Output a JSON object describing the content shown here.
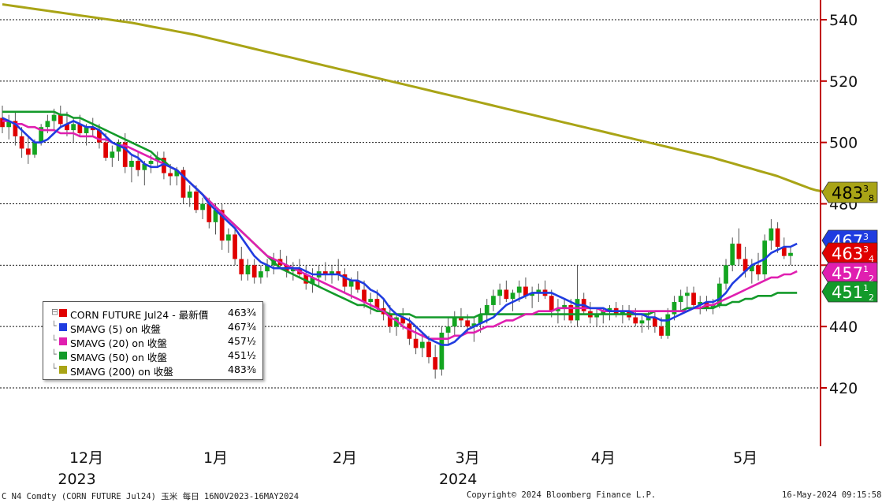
{
  "chart_data": {
    "type": "candlestick",
    "instrument": "CORN FUTURE Jul24",
    "y_axis": {
      "ticks": [
        420,
        440,
        460,
        480,
        500,
        520,
        540
      ],
      "ylim": [
        407,
        547
      ],
      "position": "right"
    },
    "x_axis": {
      "months": [
        {
          "label": "12月",
          "x_date": "2023-12-01"
        },
        {
          "label": "1月",
          "x_date": "2024-01-02"
        },
        {
          "label": "2月",
          "x_date": "2024-02-01"
        },
        {
          "label": "3月",
          "x_date": "2024-03-01"
        },
        {
          "label": "4月",
          "x_date": "2024-04-01"
        },
        {
          "label": "5月",
          "x_date": "2024-05-01"
        }
      ],
      "years": [
        {
          "label": "2023",
          "under": "12月"
        },
        {
          "label": "2024",
          "under": "3月"
        }
      ]
    },
    "candles_ohlc": [
      [
        508,
        512,
        503,
        505
      ],
      [
        505,
        509,
        501,
        507
      ],
      [
        507,
        510,
        499,
        502
      ],
      [
        502,
        505,
        495,
        498
      ],
      [
        498,
        502,
        493,
        496
      ],
      [
        496,
        501,
        495,
        500
      ],
      [
        500,
        506,
        499,
        505
      ],
      [
        505,
        509,
        503,
        507
      ],
      [
        507,
        511,
        504,
        509
      ],
      [
        509,
        512,
        505,
        506
      ],
      [
        506,
        510,
        502,
        504
      ],
      [
        504,
        508,
        500,
        506
      ],
      [
        506,
        509,
        502,
        503
      ],
      [
        503,
        506,
        499,
        505
      ],
      [
        505,
        508,
        502,
        504
      ],
      [
        504,
        506,
        498,
        500
      ],
      [
        500,
        503,
        494,
        495
      ],
      [
        495,
        499,
        492,
        497
      ],
      [
        497,
        501,
        494,
        500
      ],
      [
        500,
        503,
        490,
        492
      ],
      [
        492,
        496,
        487,
        494
      ],
      [
        494,
        497,
        489,
        491
      ],
      [
        491,
        494,
        486,
        493
      ],
      [
        493,
        496,
        490,
        494
      ],
      [
        494,
        497,
        492,
        495
      ],
      [
        495,
        497,
        488,
        490
      ],
      [
        490,
        493,
        486,
        489
      ],
      [
        489,
        492,
        486,
        491
      ],
      [
        491,
        492,
        480,
        482
      ],
      [
        482,
        486,
        479,
        484
      ],
      [
        484,
        486,
        477,
        478
      ],
      [
        478,
        482,
        475,
        480
      ],
      [
        480,
        482,
        472,
        474
      ],
      [
        474,
        480,
        470,
        478
      ],
      [
        478,
        480,
        465,
        468
      ],
      [
        468,
        472,
        464,
        470
      ],
      [
        470,
        472,
        460,
        462
      ],
      [
        462,
        466,
        455,
        457
      ],
      [
        457,
        462,
        455,
        460
      ],
      [
        460,
        462,
        454,
        456
      ],
      [
        456,
        460,
        454,
        458
      ],
      [
        458,
        462,
        456,
        460
      ],
      [
        460,
        464,
        457,
        462
      ],
      [
        462,
        465,
        459,
        460
      ],
      [
        460,
        463,
        456,
        458
      ],
      [
        458,
        461,
        455,
        459
      ],
      [
        459,
        462,
        456,
        457
      ],
      [
        457,
        460,
        452,
        454
      ],
      [
        454,
        459,
        451,
        456
      ],
      [
        456,
        460,
        453,
        458
      ],
      [
        458,
        461,
        455,
        457
      ],
      [
        457,
        460,
        454,
        458
      ],
      [
        458,
        462,
        455,
        457
      ],
      [
        457,
        459,
        451,
        453
      ],
      [
        453,
        456,
        449,
        455
      ],
      [
        455,
        458,
        451,
        452
      ],
      [
        452,
        455,
        446,
        448
      ],
      [
        448,
        451,
        444,
        449
      ],
      [
        449,
        452,
        445,
        446
      ],
      [
        446,
        449,
        442,
        444
      ],
      [
        444,
        447,
        438,
        440
      ],
      [
        440,
        444,
        437,
        443
      ],
      [
        443,
        446,
        439,
        441
      ],
      [
        441,
        443,
        434,
        436
      ],
      [
        436,
        440,
        431,
        433
      ],
      [
        433,
        438,
        430,
        435
      ],
      [
        435,
        437,
        428,
        430
      ],
      [
        430,
        434,
        423,
        426
      ],
      [
        426,
        440,
        424,
        438
      ],
      [
        438,
        443,
        434,
        440
      ],
      [
        440,
        445,
        437,
        443
      ],
      [
        443,
        446,
        440,
        442
      ],
      [
        442,
        444,
        438,
        440
      ],
      [
        440,
        443,
        435,
        441
      ],
      [
        441,
        446,
        438,
        444
      ],
      [
        444,
        449,
        441,
        447
      ],
      [
        447,
        452,
        445,
        450
      ],
      [
        450,
        454,
        447,
        452
      ],
      [
        452,
        455,
        448,
        449
      ],
      [
        449,
        452,
        445,
        451
      ],
      [
        451,
        455,
        448,
        453
      ],
      [
        453,
        456,
        449,
        450
      ],
      [
        450,
        453,
        446,
        451
      ],
      [
        451,
        454,
        448,
        452
      ],
      [
        452,
        455,
        449,
        450
      ],
      [
        450,
        452,
        443,
        445
      ],
      [
        445,
        449,
        441,
        446
      ],
      [
        446,
        449,
        442,
        447
      ],
      [
        447,
        449,
        441,
        442
      ],
      [
        442,
        460,
        440,
        449
      ],
      [
        449,
        451,
        444,
        445
      ],
      [
        445,
        448,
        441,
        443
      ],
      [
        443,
        446,
        440,
        444
      ],
      [
        444,
        446,
        441,
        445
      ],
      [
        445,
        447,
        442,
        446
      ],
      [
        446,
        448,
        443,
        444
      ],
      [
        444,
        447,
        441,
        445
      ],
      [
        445,
        447,
        442,
        443
      ],
      [
        443,
        446,
        440,
        441
      ],
      [
        441,
        444,
        438,
        442
      ],
      [
        442,
        445,
        439,
        443
      ],
      [
        443,
        445,
        438,
        440
      ],
      [
        440,
        443,
        436,
        437
      ],
      [
        437,
        446,
        436,
        444
      ],
      [
        444,
        450,
        442,
        448
      ],
      [
        448,
        452,
        445,
        450
      ],
      [
        450,
        453,
        446,
        451
      ],
      [
        451,
        453,
        446,
        447
      ],
      [
        447,
        450,
        444,
        448
      ],
      [
        448,
        450,
        445,
        446
      ],
      [
        446,
        449,
        444,
        447
      ],
      [
        447,
        456,
        446,
        454
      ],
      [
        454,
        462,
        452,
        460
      ],
      [
        460,
        469,
        458,
        467
      ],
      [
        467,
        472,
        460,
        462
      ],
      [
        462,
        466,
        456,
        458
      ],
      [
        458,
        462,
        454,
        460
      ],
      [
        460,
        464,
        455,
        457
      ],
      [
        457,
        470,
        455,
        468
      ],
      [
        468,
        475,
        465,
        472
      ],
      [
        472,
        474,
        464,
        466
      ],
      [
        466,
        469,
        462,
        463
      ],
      [
        463,
        466,
        460,
        464
      ]
    ],
    "series": [
      {
        "name": "SMAVG (5)  on 收盤",
        "color": "#1f3ce0",
        "values": [
          508,
          507,
          506,
          504,
          502,
          500,
          500,
          501,
          503,
          505,
          506,
          507,
          506,
          505,
          505,
          504,
          502,
          500,
          499,
          498,
          496,
          495,
          493,
          492,
          492,
          493,
          492,
          491,
          489,
          487,
          485,
          483,
          480,
          478,
          476,
          474,
          472,
          469,
          466,
          463,
          461,
          460,
          459,
          459,
          459,
          459,
          459,
          458,
          457,
          457,
          457,
          457,
          457,
          456,
          455,
          455,
          454,
          452,
          451,
          449,
          446,
          444,
          443,
          442,
          440,
          438,
          436,
          435,
          434,
          434,
          435,
          437,
          439,
          440,
          441,
          442,
          443,
          445,
          447,
          448,
          449,
          450,
          451,
          451,
          451,
          451,
          450,
          449,
          448,
          447,
          447,
          446,
          446,
          446,
          445,
          445,
          445,
          445,
          444,
          444,
          443,
          443,
          442,
          442,
          443,
          444,
          445,
          446,
          447,
          448,
          448,
          449,
          451,
          454,
          456,
          458,
          460,
          461,
          462,
          464,
          465,
          466,
          466,
          467
        ]
      },
      {
        "name": "SMAVG (20)  on 收盤",
        "color": "#e01fb0",
        "values": [
          507,
          507,
          506,
          506,
          505,
          505,
          504,
          504,
          504,
          503,
          503,
          503,
          502,
          502,
          502,
          501,
          501,
          500,
          499,
          499,
          498,
          497,
          496,
          495,
          494,
          493,
          492,
          491,
          489,
          487,
          485,
          483,
          481,
          479,
          477,
          475,
          473,
          471,
          469,
          467,
          465,
          463,
          462,
          461,
          460,
          459,
          458,
          457,
          456,
          455,
          454,
          453,
          452,
          451,
          450,
          449,
          448,
          447,
          446,
          445,
          443,
          442,
          440,
          439,
          438,
          437,
          436,
          436,
          436,
          436,
          437,
          437,
          438,
          438,
          439,
          440,
          440,
          441,
          442,
          442,
          443,
          444,
          444,
          445,
          445,
          445,
          446,
          446,
          446,
          446,
          446,
          446,
          446,
          445,
          445,
          445,
          445,
          445,
          445,
          445,
          445,
          445,
          445,
          445,
          445,
          445,
          445,
          446,
          446,
          447,
          447,
          448,
          449,
          450,
          451,
          452,
          453,
          454,
          455,
          456,
          456,
          457,
          457,
          458
        ]
      },
      {
        "name": "SMAVG (50)  on 收盤",
        "color": "#139a2a",
        "values": [
          510,
          510,
          510,
          510,
          510,
          510,
          510,
          510,
          510,
          509,
          509,
          508,
          508,
          507,
          506,
          505,
          504,
          503,
          502,
          501,
          500,
          499,
          498,
          497,
          495,
          494,
          492,
          491,
          489,
          487,
          485,
          483,
          481,
          479,
          477,
          475,
          473,
          471,
          469,
          467,
          465,
          463,
          461,
          459,
          458,
          457,
          456,
          455,
          454,
          453,
          452,
          451,
          450,
          449,
          448,
          447,
          447,
          446,
          445,
          445,
          444,
          444,
          444,
          444,
          443,
          443,
          443,
          443,
          443,
          443,
          443,
          443,
          443,
          443,
          444,
          444,
          444,
          444,
          444,
          444,
          444,
          444,
          444,
          444,
          444,
          444,
          444,
          444,
          444,
          444,
          444,
          444,
          444,
          444,
          444,
          444,
          444,
          444,
          444,
          444,
          444,
          445,
          445,
          445,
          445,
          445,
          446,
          446,
          446,
          446,
          446,
          447,
          447,
          448,
          448,
          449,
          449,
          450,
          450,
          450,
          451,
          451,
          451,
          451
        ]
      },
      {
        "name": "SMAVG (200)  on 收盤",
        "color": "#a9a416",
        "values": [
          545,
          544.7,
          544.4,
          544.1,
          543.8,
          543.5,
          543.2,
          542.9,
          542.6,
          542.3,
          542,
          541.7,
          541.4,
          541.1,
          540.8,
          540.5,
          540.2,
          539.9,
          539.6,
          539.3,
          539,
          538.6,
          538.2,
          537.8,
          537.4,
          537,
          536.6,
          536.2,
          535.8,
          535.4,
          535,
          534.5,
          534,
          533.5,
          533,
          532.5,
          532,
          531.5,
          531,
          530.5,
          530,
          529.5,
          529,
          528.5,
          528,
          527.5,
          527,
          526.5,
          526,
          525.5,
          525,
          524.5,
          524,
          523.5,
          523,
          522.5,
          522,
          521.5,
          521,
          520.5,
          520,
          519.5,
          519,
          518.5,
          518,
          517.5,
          517,
          516.5,
          516,
          515.5,
          515,
          514.5,
          514,
          513.5,
          513,
          512.5,
          512,
          511.5,
          511,
          510.5,
          510,
          509.5,
          509,
          508.5,
          508,
          507.5,
          507,
          506.5,
          506,
          505.5,
          505,
          504.5,
          504,
          503.5,
          503,
          502.5,
          502,
          501.5,
          501,
          500.5,
          500,
          499.5,
          499,
          498.5,
          498,
          497.5,
          497,
          496.5,
          496,
          495.5,
          495,
          494.4,
          493.8,
          493.2,
          492.6,
          492,
          491.4,
          490.8,
          490.2,
          489.6,
          489,
          488.2,
          487.4,
          486.6,
          485.8,
          485,
          484.4,
          484
        ]
      }
    ],
    "last_labels": [
      {
        "text": "483",
        "frac": "3/8",
        "bg": "#a9a416",
        "fg": "#000000",
        "value": 483.375
      },
      {
        "text": "467",
        "frac": "3/4",
        "bg": "#1f3ce0",
        "fg": "#ffffff",
        "value": 467.75
      },
      {
        "text": "463",
        "frac": "3/4",
        "bg": "#e00000",
        "fg": "#ffffff",
        "value": 463.75
      },
      {
        "text": "457",
        "frac": "1/2",
        "bg": "#e01fb0",
        "fg": "#ffffff",
        "value": 457.5
      },
      {
        "text": "451",
        "frac": "1/2",
        "bg": "#139a2a",
        "fg": "#ffffff",
        "value": 451.5
      }
    ]
  },
  "legend": {
    "items": [
      {
        "name": "CORN FUTURE Jul24 - 最新價",
        "value": "463¾",
        "color": "#e00000"
      },
      {
        "name": "SMAVG (5)  on 收盤",
        "value": "467¾",
        "color": "#1f3ce0"
      },
      {
        "name": "SMAVG (20)  on 收盤",
        "value": "457½",
        "color": "#e01fb0"
      },
      {
        "name": "SMAVG (50)  on 收盤",
        "value": "451½",
        "color": "#139a2a"
      },
      {
        "name": "SMAVG (200)  on 收盤",
        "value": "483⅜",
        "color": "#a9a416"
      }
    ]
  },
  "footer": {
    "left": "C N4 Comdty (CORN FUTURE     Jul24) 玉米  每日 16NOV2023-16MAY2024",
    "center": "Copyright© 2024 Bloomberg Finance L.P.",
    "right": "16-May-2024 09:15:58"
  }
}
